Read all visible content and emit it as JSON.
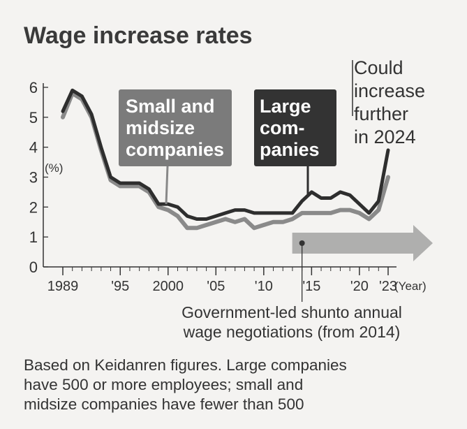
{
  "chart_data": {
    "type": "line",
    "title": "Wage increase rates",
    "ylabel": "(%)",
    "xlabel": "(Year)",
    "ylim": [
      0,
      6
    ],
    "yticks": [
      "0",
      "1",
      "2",
      "3",
      "4",
      "5",
      "6"
    ],
    "xlim": [
      1989,
      2023
    ],
    "xticks": [
      {
        "x": 1989,
        "label": "1989"
      },
      {
        "x": 1995,
        "label": "'95"
      },
      {
        "x": 2000,
        "label": "2000"
      },
      {
        "x": 2005,
        "label": "'05"
      },
      {
        "x": 2010,
        "label": "'10"
      },
      {
        "x": 2015,
        "label": "'15"
      },
      {
        "x": 2020,
        "label": "'20"
      },
      {
        "x": 2023,
        "label": "'23"
      }
    ],
    "x": [
      1989,
      1990,
      1991,
      1992,
      1993,
      1994,
      1995,
      1996,
      1997,
      1998,
      1999,
      2000,
      2001,
      2002,
      2003,
      2004,
      2005,
      2006,
      2007,
      2008,
      2009,
      2010,
      2011,
      2012,
      2013,
      2014,
      2015,
      2016,
      2017,
      2018,
      2019,
      2020,
      2021,
      2022,
      2023
    ],
    "series": [
      {
        "name": "Large companies",
        "color": "#2e2e2e",
        "values": [
          5.2,
          5.9,
          5.7,
          5.1,
          4.0,
          3.0,
          2.8,
          2.8,
          2.8,
          2.6,
          2.1,
          2.1,
          2.0,
          1.7,
          1.6,
          1.6,
          1.7,
          1.8,
          1.9,
          1.9,
          1.8,
          1.8,
          1.8,
          1.8,
          1.8,
          2.2,
          2.5,
          2.3,
          2.3,
          2.5,
          2.4,
          2.1,
          1.8,
          2.2,
          3.9
        ]
      },
      {
        "name": "Small and midsize companies",
        "color": "#8a8a8a",
        "values": [
          5.0,
          5.8,
          5.6,
          5.0,
          3.9,
          2.9,
          2.7,
          2.7,
          2.7,
          2.5,
          2.0,
          1.9,
          1.7,
          1.3,
          1.3,
          1.4,
          1.5,
          1.6,
          1.5,
          1.6,
          1.3,
          1.4,
          1.5,
          1.5,
          1.6,
          1.8,
          1.8,
          1.8,
          1.8,
          1.9,
          1.9,
          1.8,
          1.6,
          1.9,
          3.0
        ]
      }
    ],
    "labels": {
      "small": [
        "Small and",
        "midsize",
        "companies"
      ],
      "large": [
        "Large",
        "com-",
        "panies"
      ],
      "future": [
        "Could",
        "increase",
        "further",
        "in 2024"
      ]
    },
    "annotation": {
      "start_year": 2014,
      "text": [
        "Government-led shunto annual",
        "wage negotiations (from 2014)"
      ]
    },
    "note": [
      "Based on Keidanren figures. Large companies",
      "have 500 or more employees; small and",
      "midsize companies have fewer than 500"
    ]
  }
}
